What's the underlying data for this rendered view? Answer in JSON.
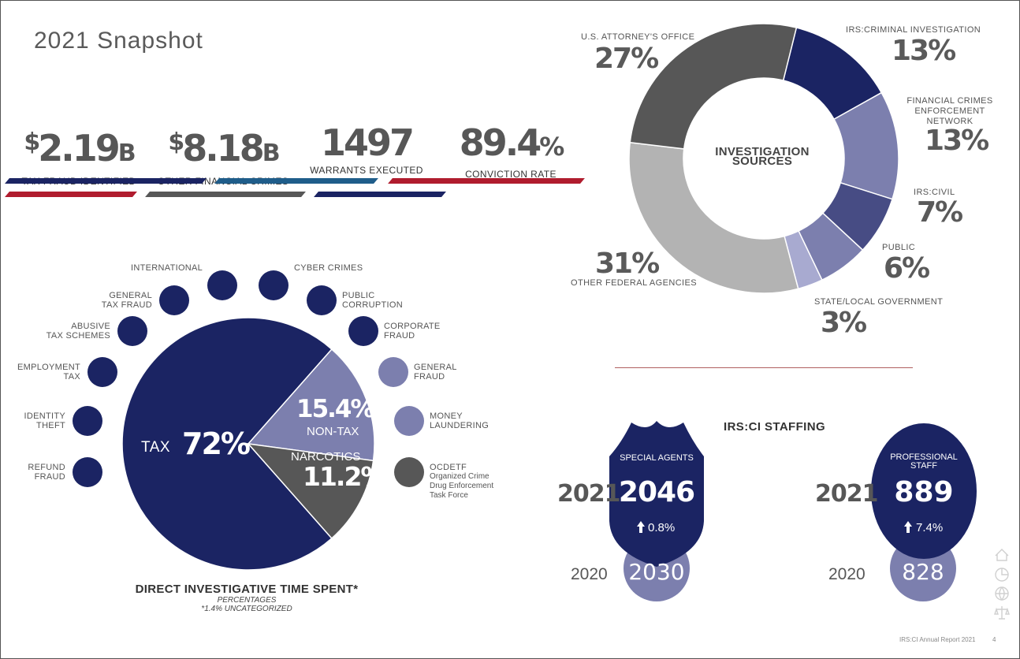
{
  "page_title": "2021 Snapshot",
  "stats": [
    {
      "prefix": "$",
      "value": "2.19",
      "suffix": "B",
      "label": "TAX FRAUD IDENTIFIED"
    },
    {
      "prefix": "$",
      "value": "8.18",
      "suffix": "B",
      "label": "OTHER FINANCIAL CRIMES"
    },
    {
      "prefix": "",
      "value": "1497",
      "suffix": "",
      "label": "WARRANTS EXECUTED"
    },
    {
      "prefix": "",
      "value": "89.4",
      "suffix": "%",
      "label": "CONVICTION RATE"
    }
  ],
  "colors": {
    "navy": "#1b2463",
    "lavender": "#7c7fae",
    "dark_gray": "#575757",
    "light_gray": "#b3b3b3",
    "red": "#b01c2e",
    "blue": "#1f5d8a",
    "lilac": "#a8aad0",
    "slate": "#474c84"
  },
  "chart_data": [
    {
      "type": "pie",
      "title": "INVESTIGATION SOURCES",
      "slices": [
        {
          "label": "IRS:CRIMINAL INVESTIGATION",
          "value": 13,
          "display": "13%",
          "color": "#1b2463"
        },
        {
          "label": "FINANCIAL CRIMES ENFORCEMENT NETWORK",
          "value": 13,
          "display": "13%",
          "color": "#7c7fae"
        },
        {
          "label": "IRS:CIVIL",
          "value": 7,
          "display": "7%",
          "color": "#474c84"
        },
        {
          "label": "PUBLIC",
          "value": 6,
          "display": "6%",
          "color": "#7c7fae"
        },
        {
          "label": "STATE/LOCAL GOVERNMENT",
          "value": 3,
          "display": "3%",
          "color": "#a8aad0"
        },
        {
          "label": "OTHER FEDERAL AGENCIES",
          "value": 31,
          "display": "31%",
          "color": "#b3b3b3"
        },
        {
          "label": "U.S. ATTORNEY'S OFFICE",
          "value": 27,
          "display": "27%",
          "color": "#575757"
        }
      ]
    },
    {
      "type": "pie",
      "title": "DIRECT INVESTIGATIVE TIME SPENT*",
      "subtitle": "PERCENTAGES",
      "note": "*1.4% UNCATEGORIZED",
      "slices": [
        {
          "label": "TAX",
          "value": 72,
          "display": "72%",
          "color": "#1b2463"
        },
        {
          "label": "NON-TAX",
          "value": 15.4,
          "display": "15.4%",
          "color": "#7c7fae"
        },
        {
          "label": "NARCOTICS",
          "value": 11.2,
          "display": "11.2%",
          "color": "#575757"
        }
      ]
    }
  ],
  "categories": [
    {
      "label": "REFUND\nFRAUD",
      "group": "tax"
    },
    {
      "label": "IDENTITY\nTHEFT",
      "group": "tax"
    },
    {
      "label": "EMPLOYMENT\nTAX",
      "group": "tax"
    },
    {
      "label": "ABUSIVE\nTAX SCHEMES",
      "group": "tax"
    },
    {
      "label": "GENERAL\nTAX FRAUD",
      "group": "tax"
    },
    {
      "label": "INTERNATIONAL",
      "group": "tax"
    },
    {
      "label": "CYBER CRIMES",
      "group": "tax"
    },
    {
      "label": "PUBLIC\nCORRUPTION",
      "group": "tax"
    },
    {
      "label": "CORPORATE\nFRAUD",
      "group": "tax"
    },
    {
      "label": "GENERAL\nFRAUD",
      "group": "nontax"
    },
    {
      "label": "MONEY\nLAUNDERING",
      "group": "nontax"
    },
    {
      "label": "OCDETF",
      "sublabel": "Organized Crime\nDrug Enforcement\nTask Force",
      "group": "narcotics"
    }
  ],
  "staffing": {
    "title": "IRS:CI STAFFING",
    "agents": {
      "label": "SPECIAL AGENTS",
      "year_current": "2021",
      "current": "2046",
      "change": "0.8%",
      "year_prior": "2020",
      "prior": "2030"
    },
    "staff": {
      "label": "PROFESSIONAL\nSTAFF",
      "year_current": "2021",
      "current": "889",
      "change": "7.4%",
      "year_prior": "2020",
      "prior": "828"
    }
  },
  "footer": {
    "report": "IRS:CI Annual Report 2021",
    "page": "4"
  }
}
